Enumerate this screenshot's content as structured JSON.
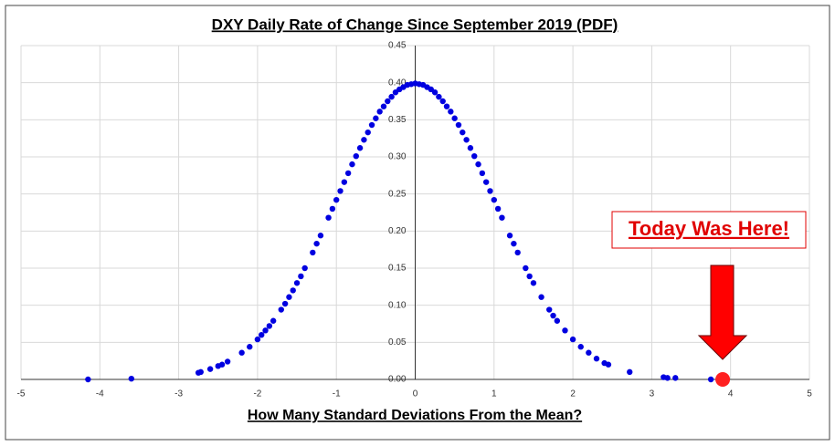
{
  "chart_data": {
    "type": "scatter",
    "title": "DXY Daily Rate of Change Since September 2019 (PDF)",
    "x_label": "How Many Standard Deviations From the Mean?",
    "annotation": "Today Was Here!",
    "color": "#0000e0",
    "x": [
      -4.15,
      -3.6,
      -2.75,
      -2.72,
      -2.6,
      -2.5,
      -2.45,
      -2.38,
      -2.2,
      -2.1,
      -2.0,
      -1.95,
      -1.9,
      -1.85,
      -1.8,
      -1.7,
      -1.65,
      -1.6,
      -1.55,
      -1.5,
      -1.45,
      -1.4,
      -1.3,
      -1.25,
      -1.2,
      -1.1,
      -1.05,
      -1.0,
      -0.95,
      -0.9,
      -0.85,
      -0.8,
      -0.75,
      -0.7,
      -0.65,
      -0.6,
      -0.55,
      -0.5,
      -0.45,
      -0.4,
      -0.35,
      -0.3,
      -0.25,
      -0.2,
      -0.15,
      -0.1,
      -0.05,
      0,
      0.05,
      0.1,
      0.15,
      0.2,
      0.25,
      0.3,
      0.35,
      0.4,
      0.45,
      0.5,
      0.55,
      0.6,
      0.65,
      0.7,
      0.75,
      0.8,
      0.85,
      0.9,
      0.95,
      1.0,
      1.05,
      1.1,
      1.2,
      1.25,
      1.3,
      1.4,
      1.45,
      1.5,
      1.6,
      1.7,
      1.75,
      1.8,
      1.9,
      2.0,
      2.1,
      2.2,
      2.3,
      2.4,
      2.45,
      2.72,
      3.15,
      3.2,
      3.3,
      3.75,
      3.85
    ],
    "values": [
      0.0,
      0.001,
      0.009,
      0.01,
      0.014,
      0.018,
      0.02,
      0.024,
      0.036,
      0.044,
      0.054,
      0.06,
      0.066,
      0.072,
      0.079,
      0.094,
      0.102,
      0.111,
      0.12,
      0.13,
      0.139,
      0.15,
      0.171,
      0.183,
      0.194,
      0.218,
      0.23,
      0.242,
      0.254,
      0.266,
      0.278,
      0.29,
      0.301,
      0.312,
      0.323,
      0.333,
      0.343,
      0.352,
      0.361,
      0.368,
      0.375,
      0.381,
      0.387,
      0.391,
      0.394,
      0.397,
      0.398,
      0.399,
      0.398,
      0.397,
      0.394,
      0.391,
      0.387,
      0.381,
      0.375,
      0.368,
      0.361,
      0.352,
      0.343,
      0.333,
      0.323,
      0.312,
      0.301,
      0.29,
      0.278,
      0.266,
      0.254,
      0.242,
      0.23,
      0.218,
      0.194,
      0.183,
      0.171,
      0.15,
      0.139,
      0.13,
      0.111,
      0.094,
      0.086,
      0.079,
      0.066,
      0.054,
      0.044,
      0.036,
      0.028,
      0.022,
      0.02,
      0.01,
      0.003,
      0.002,
      0.002,
      0.0,
      0.0
    ],
    "highlight": {
      "x": 3.9,
      "y": 0.0,
      "color": "#ff2020"
    },
    "xlim": [
      -5,
      5
    ],
    "xticks": [
      -5,
      -4,
      -3,
      -2,
      -1,
      0,
      1,
      2,
      3,
      4,
      5
    ],
    "ylim": [
      0,
      0.45
    ],
    "yticks": [
      {
        "value": 0,
        "label": "0.00"
      },
      {
        "value": 0.05,
        "label": "0.05"
      },
      {
        "value": 0.1,
        "label": "0.10"
      },
      {
        "value": 0.15,
        "label": "0.15"
      },
      {
        "value": 0.2,
        "label": "0.20"
      },
      {
        "value": 0.25,
        "label": "0.25"
      },
      {
        "value": 0.3,
        "label": "0.30"
      },
      {
        "value": 0.35,
        "label": "0.35"
      },
      {
        "value": 0.4,
        "label": "0.40"
      },
      {
        "value": 0.45,
        "label": "0.45"
      }
    ],
    "grid": true
  }
}
